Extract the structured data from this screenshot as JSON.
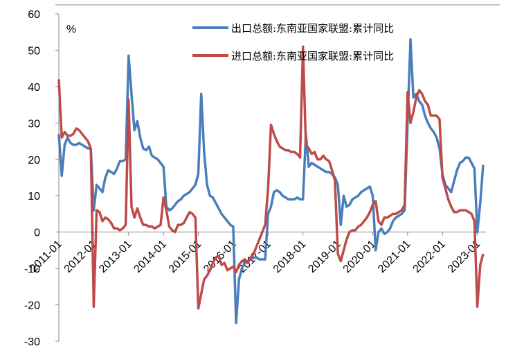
{
  "chart_data": {
    "type": "line",
    "unit_label": "%",
    "categories": [
      "2011-01",
      null,
      null,
      null,
      null,
      null,
      null,
      null,
      null,
      null,
      null,
      null,
      "2012-01",
      null,
      null,
      null,
      null,
      null,
      null,
      null,
      null,
      null,
      null,
      null,
      "2013-01",
      null,
      null,
      null,
      null,
      null,
      null,
      null,
      null,
      null,
      null,
      null,
      "2014-01",
      null,
      null,
      null,
      null,
      null,
      null,
      null,
      null,
      null,
      null,
      null,
      "2015-01",
      null,
      null,
      null,
      null,
      null,
      null,
      null,
      null,
      null,
      null,
      null,
      "2016-01",
      null,
      null,
      null,
      null,
      null,
      null,
      null,
      null,
      null,
      null,
      null,
      "2017-01",
      null,
      null,
      null,
      null,
      null,
      null,
      null,
      null,
      null,
      null,
      null,
      "2018-01",
      null,
      null,
      null,
      null,
      null,
      null,
      null,
      null,
      null,
      null,
      null,
      "2019-01",
      null,
      null,
      null,
      null,
      null,
      null,
      null,
      null,
      null,
      null,
      null,
      "2020-01",
      null,
      null,
      null,
      null,
      null,
      null,
      null,
      null,
      null,
      null,
      null,
      "2021-01",
      null,
      null,
      null,
      null,
      null,
      null,
      null,
      null,
      null,
      null,
      null,
      "2022-01",
      null,
      null,
      null,
      null,
      null,
      null,
      null,
      null,
      null,
      null,
      null,
      "2023-01",
      null,
      null
    ],
    "series": [
      {
        "name": "出口总额:东南亚国家联盟:累计同比",
        "color": "#4a7ebb",
        "values": [
          27,
          15.5,
          24,
          26,
          24.5,
          24,
          24,
          24.5,
          24,
          23.5,
          23,
          23,
          6,
          13,
          12,
          11,
          15,
          17,
          16.5,
          16,
          17.5,
          19.5,
          19.5,
          20,
          48.5,
          38,
          28,
          30.5,
          26,
          23,
          22.5,
          23.5,
          21,
          20.5,
          20,
          19,
          18,
          7,
          6,
          6.5,
          7.5,
          8.5,
          9,
          10,
          10.5,
          11,
          12,
          13,
          16,
          38,
          22,
          13,
          10,
          9.5,
          8,
          6.5,
          5,
          4,
          3,
          2,
          1.5,
          -25,
          -13,
          -10,
          -8.5,
          -8,
          -7.5,
          -7,
          -7,
          -7.5,
          -7.5,
          -7.5,
          5,
          7,
          11,
          11.5,
          11,
          10,
          9.5,
          9,
          9,
          9,
          9.5,
          9,
          9,
          27,
          18,
          19,
          18.5,
          18,
          17.5,
          17,
          16.5,
          16.5,
          16,
          15,
          13,
          2,
          10,
          7,
          7.5,
          9,
          9.5,
          10,
          11,
          11.5,
          12,
          12.5,
          10,
          -5,
          0,
          1,
          -0.5,
          0,
          1,
          3,
          4,
          4.5,
          5,
          6,
          30,
          53,
          37,
          38,
          36,
          35,
          32,
          30,
          28.5,
          27.5,
          26,
          23,
          16,
          13,
          12,
          11,
          14,
          17,
          19,
          19.5,
          20.5,
          20.5,
          19,
          17.5,
          0,
          8,
          18.5
        ]
      },
      {
        "name": "进口总额:东南亚国家联盟:累计同比",
        "color": "#be4b48",
        "values": [
          42,
          26,
          27.5,
          26.5,
          26.5,
          27,
          28.5,
          28,
          27,
          26,
          25,
          23,
          -20.5,
          6,
          5.5,
          3,
          4,
          3.5,
          2.5,
          1,
          1,
          0.5,
          1,
          2,
          36.5,
          7,
          4,
          6.5,
          4,
          2,
          2,
          1.5,
          1.5,
          1,
          1.5,
          2,
          9.5,
          6,
          1.5,
          0.5,
          0,
          2,
          2,
          2.5,
          4,
          5.5,
          5,
          4,
          -21,
          -17,
          -13,
          -12,
          -10.5,
          -8.5,
          -7,
          -6.5,
          -9,
          -8.5,
          -10.5,
          -10,
          -9.5,
          -11,
          -9,
          -8,
          -7.5,
          -8.5,
          -7,
          -6,
          -4,
          -2,
          0,
          2,
          12,
          29.5,
          27,
          25,
          23.5,
          23,
          22.5,
          22.5,
          22,
          22,
          21.5,
          20.5,
          51,
          24,
          23,
          21.5,
          22,
          20,
          20,
          21,
          20,
          19.5,
          17,
          14,
          -6,
          -8,
          -5,
          -2,
          0,
          0.5,
          0.5,
          1.5,
          2,
          3,
          4,
          5.5,
          7.5,
          8.5,
          3,
          2,
          4,
          4,
          4.5,
          5,
          5,
          5.5,
          6,
          7.5,
          38.5,
          30,
          33,
          37,
          39,
          38,
          36,
          35,
          32,
          32,
          32,
          31,
          15,
          12,
          9,
          7,
          5.5,
          5.5,
          6,
          6,
          6,
          5.5,
          5,
          3,
          -20.5,
          -9,
          -6
        ]
      }
    ],
    "ylim": [
      -30,
      60
    ],
    "yticks": [
      -30,
      -20,
      -10,
      0,
      10,
      20,
      30,
      40,
      50,
      60
    ],
    "legend": "upper right"
  }
}
